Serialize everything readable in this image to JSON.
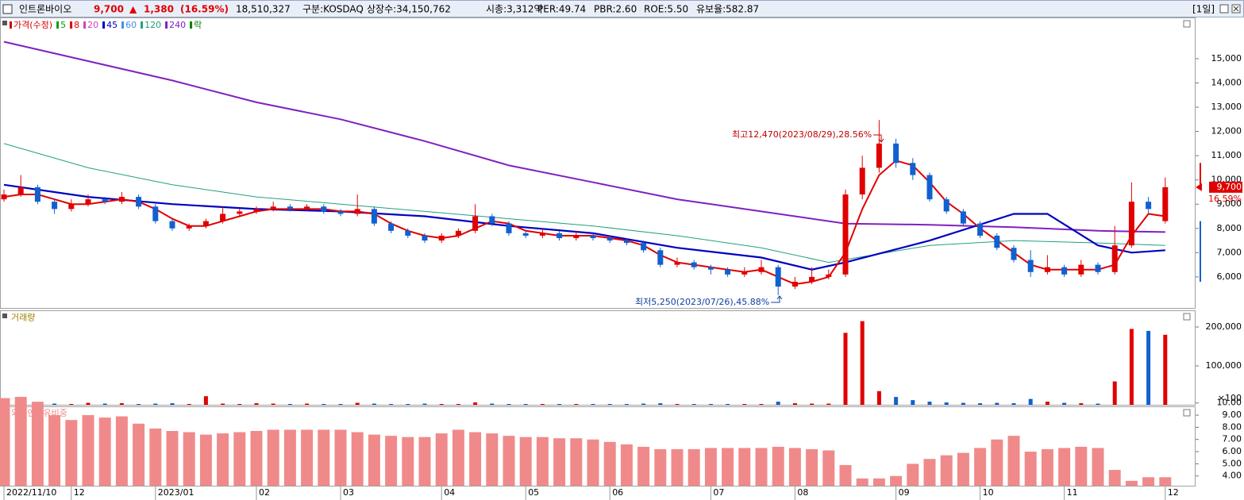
{
  "header": {
    "name": "인트론바이오",
    "price": "9,700",
    "arrow": "▲",
    "change": "1,380",
    "change_pct": "(16.59%)",
    "volume": "18,510,327",
    "market": "구분:KOSDAQ",
    "shares": "상장수:34,150,762",
    "cap": "시총:3,312억",
    "per": "PER:49.74",
    "pbr": "PBR:2.60",
    "roe": "ROE:5.50",
    "reserve": "유보율:582.87",
    "period": "[1일]"
  },
  "chart_data": [
    {
      "type": "candlestick",
      "legend": [
        {
          "label": "가격(수정)",
          "color": "#d00000"
        },
        {
          "label": "5",
          "color": "#00a000"
        },
        {
          "label": "8",
          "color": "#e00000"
        },
        {
          "label": "20",
          "color": "#d040c0"
        },
        {
          "label": "45",
          "color": "#0000c0"
        },
        {
          "label": "60",
          "color": "#4090e0"
        },
        {
          "label": "120",
          "color": "#20a080"
        },
        {
          "label": "240",
          "color": "#8020c0"
        },
        {
          "label": "락",
          "color": "#008000"
        }
      ],
      "categories": [
        "2022/11/10",
        null,
        null,
        null,
        "12",
        null,
        null,
        null,
        null,
        "2023/01",
        null,
        null,
        null,
        null,
        null,
        "02",
        null,
        null,
        null,
        null,
        "03",
        null,
        null,
        null,
        null,
        null,
        "04",
        null,
        null,
        null,
        null,
        "05",
        null,
        null,
        null,
        null,
        "06",
        null,
        null,
        null,
        null,
        null,
        "07",
        null,
        null,
        null,
        null,
        "08",
        null,
        null,
        null,
        null,
        null,
        "09",
        null,
        null,
        null,
        null,
        "10",
        null,
        null,
        null,
        null,
        "11",
        null,
        null,
        null,
        null,
        null,
        "12"
      ],
      "ohlc": [
        [
          9200,
          9600,
          9100,
          9400
        ],
        [
          9400,
          10200,
          9300,
          9700
        ],
        [
          9700,
          9800,
          9000,
          9100
        ],
        [
          9100,
          9200,
          8600,
          8800
        ],
        [
          8800,
          9200,
          8700,
          9000
        ],
        [
          9000,
          9400,
          8900,
          9200
        ],
        [
          9200,
          9300,
          9000,
          9100
        ],
        [
          9100,
          9500,
          9000,
          9300
        ],
        [
          9300,
          9400,
          8800,
          8900
        ],
        [
          8900,
          9000,
          8200,
          8300
        ],
        [
          8300,
          8400,
          7900,
          8000
        ],
        [
          8000,
          8200,
          7900,
          8100
        ],
        [
          8100,
          8400,
          8000,
          8300
        ],
        [
          8300,
          8900,
          8200,
          8600
        ],
        [
          8600,
          8800,
          8500,
          8700
        ],
        [
          8700,
          8900,
          8600,
          8800
        ],
        [
          8800,
          9100,
          8700,
          8900
        ],
        [
          8900,
          9000,
          8700,
          8800
        ],
        [
          8800,
          9000,
          8700,
          8900
        ],
        [
          8900,
          9000,
          8600,
          8700
        ],
        [
          8700,
          8800,
          8500,
          8600
        ],
        [
          8600,
          9400,
          8500,
          8800
        ],
        [
          8800,
          8900,
          8100,
          8200
        ],
        [
          8200,
          8300,
          7800,
          7900
        ],
        [
          7900,
          8000,
          7600,
          7700
        ],
        [
          7700,
          7800,
          7400,
          7500
        ],
        [
          7500,
          7800,
          7400,
          7700
        ],
        [
          7700,
          8000,
          7600,
          7900
        ],
        [
          7900,
          9000,
          7800,
          8500
        ],
        [
          8500,
          8600,
          8100,
          8200
        ],
        [
          8200,
          8300,
          7700,
          7800
        ],
        [
          7800,
          7900,
          7600,
          7700
        ],
        [
          7700,
          8000,
          7600,
          7800
        ],
        [
          7800,
          7900,
          7500,
          7600
        ],
        [
          7600,
          7900,
          7500,
          7700
        ],
        [
          7700,
          7800,
          7500,
          7600
        ],
        [
          7600,
          7700,
          7400,
          7500
        ],
        [
          7500,
          7600,
          7300,
          7400
        ],
        [
          7400,
          7500,
          7000,
          7100
        ],
        [
          7100,
          7200,
          6400,
          6500
        ],
        [
          6500,
          6800,
          6400,
          6600
        ],
        [
          6600,
          6700,
          6300,
          6400
        ],
        [
          6400,
          6500,
          6100,
          6300
        ],
        [
          6300,
          6400,
          6000,
          6100
        ],
        [
          6100,
          6400,
          6000,
          6200
        ],
        [
          6200,
          6700,
          6100,
          6400
        ],
        [
          6400,
          6500,
          5250,
          5600
        ],
        [
          5600,
          6000,
          5500,
          5800
        ],
        [
          5800,
          6400,
          5700,
          6000
        ],
        [
          6000,
          6300,
          5900,
          6100
        ],
        [
          6100,
          9600,
          6000,
          9400
        ],
        [
          9400,
          11000,
          9200,
          10500
        ],
        [
          10500,
          12470,
          10300,
          11500
        ],
        [
          11500,
          11700,
          10500,
          10700
        ],
        [
          10700,
          10900,
          10000,
          10200
        ],
        [
          10200,
          10300,
          9100,
          9200
        ],
        [
          9200,
          9300,
          8600,
          8700
        ],
        [
          8700,
          8800,
          8100,
          8200
        ],
        [
          8200,
          8300,
          7600,
          7700
        ],
        [
          7700,
          7800,
          7100,
          7200
        ],
        [
          7200,
          7300,
          6600,
          6700
        ],
        [
          6700,
          7100,
          6000,
          6200
        ],
        [
          6200,
          6900,
          6100,
          6400
        ],
        [
          6400,
          6500,
          6000,
          6100
        ],
        [
          6100,
          6700,
          6000,
          6500
        ],
        [
          6500,
          6600,
          6100,
          6200
        ],
        [
          6200,
          8100,
          6100,
          7300
        ],
        [
          7300,
          9900,
          7200,
          9100
        ],
        [
          9100,
          9300,
          8600,
          8800
        ],
        [
          8300,
          10100,
          8200,
          9700
        ]
      ],
      "up_color": "#e00000",
      "down_color": "#1060d0",
      "series": [
        {
          "name": "240",
          "color": "#8020c0",
          "width": 2,
          "x": [
            0,
            5,
            10,
            15,
            20,
            25,
            30,
            35,
            40,
            45,
            50,
            55,
            60,
            65,
            69
          ],
          "values": [
            15700,
            14900,
            14100,
            13200,
            12500,
            11600,
            10600,
            9900,
            9200,
            8700,
            8200,
            8150,
            8050,
            7900,
            7850
          ]
        },
        {
          "name": "120",
          "color": "#20a080",
          "width": 1,
          "x": [
            0,
            5,
            10,
            15,
            20,
            25,
            30,
            35,
            40,
            45,
            49,
            55,
            60,
            65,
            69
          ],
          "values": [
            11500,
            10500,
            9800,
            9300,
            9000,
            8700,
            8400,
            8100,
            7700,
            7200,
            6600,
            7300,
            7500,
            7400,
            7300
          ]
        },
        {
          "name": "45",
          "color": "#0000c0",
          "width": 2.2,
          "x": [
            0,
            5,
            10,
            15,
            20,
            25,
            30,
            35,
            40,
            45,
            48,
            50,
            55,
            60,
            62,
            65,
            67,
            69
          ],
          "values": [
            9800,
            9300,
            9000,
            8800,
            8700,
            8500,
            8100,
            7800,
            7200,
            6800,
            6300,
            6600,
            7500,
            8600,
            8600,
            7300,
            7000,
            7100
          ]
        },
        {
          "name": "8",
          "color": "#e00000",
          "width": 2,
          "values": [
            9300,
            9400,
            9400,
            9200,
            9000,
            9000,
            9100,
            9200,
            9100,
            8800,
            8400,
            8100,
            8100,
            8300,
            8500,
            8700,
            8800,
            8800,
            8800,
            8800,
            8700,
            8700,
            8600,
            8200,
            7900,
            7700,
            7600,
            7700,
            8000,
            8300,
            8200,
            7900,
            7800,
            7700,
            7700,
            7700,
            7600,
            7500,
            7300,
            6900,
            6600,
            6500,
            6400,
            6300,
            6200,
            6300,
            6000,
            5700,
            5800,
            6000,
            7000,
            8800,
            10200,
            10800,
            10600,
            9900,
            9100,
            8600,
            8000,
            7500,
            7000,
            6500,
            6300,
            6300,
            6300,
            6300,
            6500,
            7700,
            8600,
            8500
          ]
        }
      ],
      "ylim": [
        4720,
        16700
      ],
      "yticks": [
        {
          "value": 6000,
          "label": "6,000"
        },
        {
          "value": 7000,
          "label": "7,000"
        },
        {
          "value": 8000,
          "label": "8,000"
        },
        {
          "value": 9000,
          "label": "9,000"
        },
        {
          "value": 10000,
          "label": "10,000"
        },
        {
          "value": 11000,
          "label": "11,000"
        },
        {
          "value": 12000,
          "label": "12,000"
        },
        {
          "value": 13000,
          "label": "13,000"
        },
        {
          "value": 14000,
          "label": "14,000"
        },
        {
          "value": 15000,
          "label": "15,000"
        }
      ],
      "last_change": "16.59%",
      "annotations": [
        "최고12,470(2023/08/29),28.56%",
        "최저5,250(2023/07/26),45.88%"
      ]
    },
    {
      "type": "bar",
      "title": "거래량",
      "title_color": "#a08000",
      "values": [
        3000,
        8000,
        4000,
        3000,
        2000,
        5000,
        3000,
        4000,
        2000,
        3000,
        4000,
        2000,
        22000,
        3000,
        2000,
        4000,
        3000,
        2000,
        3000,
        2000,
        2000,
        5000,
        3000,
        2000,
        2000,
        3000,
        2000,
        2000,
        6000,
        3000,
        2000,
        2000,
        2000,
        2000,
        2000,
        2000,
        2000,
        2000,
        3000,
        4000,
        2000,
        2000,
        2000,
        2000,
        2000,
        2000,
        8000,
        4000,
        3000,
        3000,
        185000,
        215000,
        35000,
        20000,
        12000,
        8000,
        6000,
        5000,
        4000,
        5000,
        4000,
        15000,
        8000,
        5000,
        4000,
        3000,
        60000,
        195000,
        190000,
        180000
      ],
      "ylim": [
        0,
        240000
      ],
      "yticks": [
        {
          "value": 100000,
          "label": "100,000"
        },
        {
          "value": 200000,
          "label": "200,000"
        }
      ],
      "unit": "×100"
    },
    {
      "type": "bar",
      "title": "외국인보유비중",
      "color": "#f08a8a",
      "values": [
        10.4,
        10.5,
        10.1,
        9.0,
        8.6,
        9.0,
        8.8,
        8.9,
        8.3,
        7.9,
        7.7,
        7.6,
        7.4,
        7.5,
        7.6,
        7.7,
        7.8,
        7.8,
        7.8,
        7.8,
        7.8,
        7.6,
        7.4,
        7.3,
        7.2,
        7.2,
        7.5,
        7.8,
        7.6,
        7.5,
        7.3,
        7.2,
        7.2,
        7.1,
        7.1,
        7.0,
        6.8,
        6.6,
        6.4,
        6.2,
        6.2,
        6.2,
        6.3,
        6.3,
        6.3,
        6.3,
        6.4,
        6.3,
        6.2,
        6.1,
        4.9,
        3.8,
        3.8,
        4.0,
        5.0,
        5.4,
        5.7,
        5.9,
        6.3,
        7.0,
        7.3,
        6.0,
        6.2,
        6.3,
        6.4,
        6.3,
        4.5,
        3.6,
        3.9,
        3.9
      ],
      "ylim": [
        3.2,
        10.7
      ],
      "yticks": [
        {
          "value": 4,
          "label": "4.00"
        },
        {
          "value": 5,
          "label": "5.00"
        },
        {
          "value": 6,
          "label": "6.00"
        },
        {
          "value": 7,
          "label": "7.00"
        },
        {
          "value": 8,
          "label": "8.00"
        },
        {
          "value": 9,
          "label": "9.00"
        },
        {
          "value": 10,
          "label": "10.00"
        }
      ]
    }
  ]
}
